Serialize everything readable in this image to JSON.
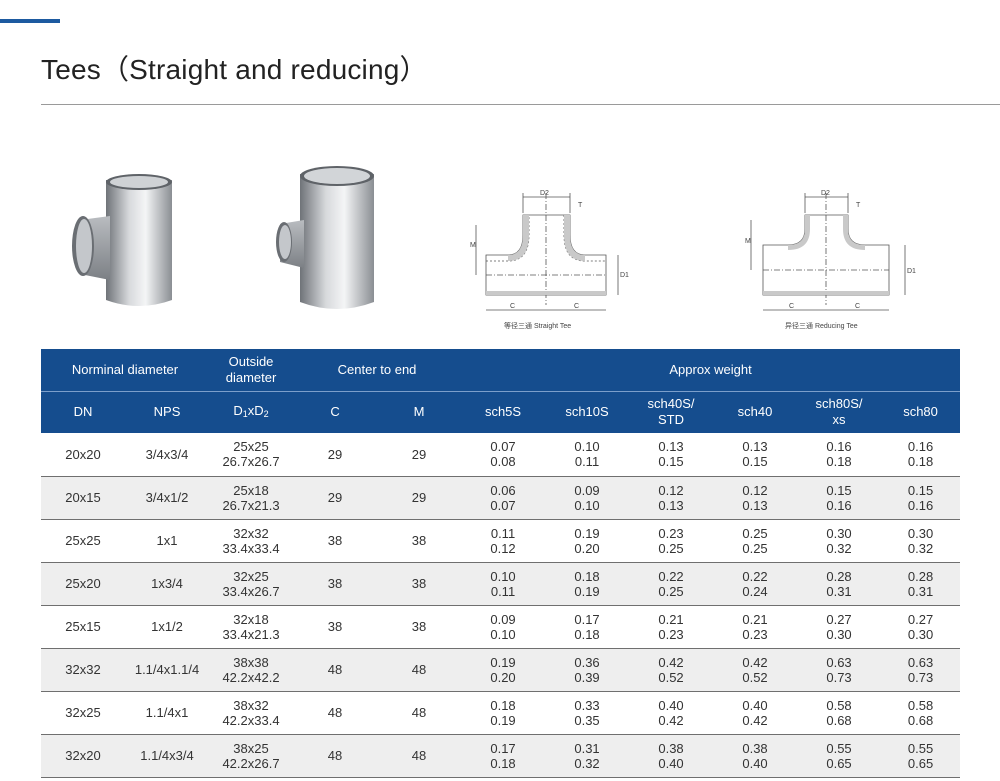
{
  "page": {
    "title": "Tees（Straight and reducing）"
  },
  "figures": {
    "photo_straight": "straight-tee-photo",
    "photo_reducing": "reducing-tee-photo",
    "straight_drawing": {
      "caption": "等径三通  Straight Tee",
      "label_d1": "D1",
      "label_d2": "D2",
      "label_t": "T",
      "label_m": "M",
      "label_c": "C"
    },
    "reducing_drawing": {
      "caption": "异径三通  Reducing Tee",
      "label_d1": "D1",
      "label_d2": "D2",
      "label_t": "T",
      "label_m": "M",
      "label_c": "C"
    }
  },
  "table": {
    "group_headers": {
      "nominal": "Norminal diameter",
      "outside_line1": "Outside",
      "outside_line2": "diameter",
      "center": "Center to end",
      "weight": "Approx weight"
    },
    "columns": {
      "dn": "DN",
      "nps": "NPS",
      "d_main": "D",
      "d_sub1": "1",
      "d_x": "xD",
      "d_sub2": "2",
      "c": "C",
      "m": "M",
      "sch5s": "sch5S",
      "sch10s": "sch10S",
      "sch40s_line1": "sch40S/",
      "sch40s_line2": "STD",
      "sch40": "sch40",
      "sch80s_line1": "sch80S/",
      "sch80s_line2": "xs",
      "sch80": "sch80"
    },
    "rows": [
      {
        "dn": "20x20",
        "nps": "3/4x3/4",
        "od": [
          "25x25",
          "26.7x26.7"
        ],
        "c": "29",
        "m": "29",
        "sch5s": [
          "0.07",
          "0.08"
        ],
        "sch10s": [
          "0.10",
          "0.11"
        ],
        "sch40s": [
          "0.13",
          "0.15"
        ],
        "sch40": [
          "0.13",
          "0.15"
        ],
        "sch80s": [
          "0.16",
          "0.18"
        ],
        "sch80": [
          "0.16",
          "0.18"
        ]
      },
      {
        "dn": "20x15",
        "nps": "3/4x1/2",
        "od": [
          "25x18",
          "26.7x21.3"
        ],
        "c": "29",
        "m": "29",
        "sch5s": [
          "0.06",
          "0.07"
        ],
        "sch10s": [
          "0.09",
          "0.10"
        ],
        "sch40s": [
          "0.12",
          "0.13"
        ],
        "sch40": [
          "0.12",
          "0.13"
        ],
        "sch80s": [
          "0.15",
          "0.16"
        ],
        "sch80": [
          "0.15",
          "0.16"
        ]
      },
      {
        "dn": "25x25",
        "nps": "1x1",
        "od": [
          "32x32",
          "33.4x33.4"
        ],
        "c": "38",
        "m": "38",
        "sch5s": [
          "0.11",
          "0.12"
        ],
        "sch10s": [
          "0.19",
          "0.20"
        ],
        "sch40s": [
          "0.23",
          "0.25"
        ],
        "sch40": [
          "0.25",
          "0.25"
        ],
        "sch80s": [
          "0.30",
          "0.32"
        ],
        "sch80": [
          "0.30",
          "0.32"
        ]
      },
      {
        "dn": "25x20",
        "nps": "1x3/4",
        "od": [
          "32x25",
          "33.4x26.7"
        ],
        "c": "38",
        "m": "38",
        "sch5s": [
          "0.10",
          "0.11"
        ],
        "sch10s": [
          "0.18",
          "0.19"
        ],
        "sch40s": [
          "0.22",
          "0.25"
        ],
        "sch40": [
          "0.22",
          "0.24"
        ],
        "sch80s": [
          "0.28",
          "0.31"
        ],
        "sch80": [
          "0.28",
          "0.31"
        ]
      },
      {
        "dn": "25x15",
        "nps": "1x1/2",
        "od": [
          "32x18",
          "33.4x21.3"
        ],
        "c": "38",
        "m": "38",
        "sch5s": [
          "0.09",
          "0.10"
        ],
        "sch10s": [
          "0.17",
          "0.18"
        ],
        "sch40s": [
          "0.21",
          "0.23"
        ],
        "sch40": [
          "0.21",
          "0.23"
        ],
        "sch80s": [
          "0.27",
          "0.30"
        ],
        "sch80": [
          "0.27",
          "0.30"
        ]
      },
      {
        "dn": "32x32",
        "nps": "1.1/4x1.1/4",
        "od": [
          "38x38",
          "42.2x42.2"
        ],
        "c": "48",
        "m": "48",
        "sch5s": [
          "0.19",
          "0.20"
        ],
        "sch10s": [
          "0.36",
          "0.39"
        ],
        "sch40s": [
          "0.42",
          "0.52"
        ],
        "sch40": [
          "0.42",
          "0.52"
        ],
        "sch80s": [
          "0.63",
          "0.73"
        ],
        "sch80": [
          "0.63",
          "0.73"
        ]
      },
      {
        "dn": "32x25",
        "nps": "1.1/4x1",
        "od": [
          "38x32",
          "42.2x33.4"
        ],
        "c": "48",
        "m": "48",
        "sch5s": [
          "0.18",
          "0.19"
        ],
        "sch10s": [
          "0.33",
          "0.35"
        ],
        "sch40s": [
          "0.40",
          "0.42"
        ],
        "sch40": [
          "0.40",
          "0.42"
        ],
        "sch80s": [
          "0.58",
          "0.68"
        ],
        "sch80": [
          "0.58",
          "0.68"
        ]
      },
      {
        "dn": "32x20",
        "nps": "1.1/4x3/4",
        "od": [
          "38x25",
          "42.2x26.7"
        ],
        "c": "48",
        "m": "48",
        "sch5s": [
          "0.17",
          "0.18"
        ],
        "sch10s": [
          "0.31",
          "0.32"
        ],
        "sch40s": [
          "0.38",
          "0.40"
        ],
        "sch40": [
          "0.38",
          "0.40"
        ],
        "sch80s": [
          "0.55",
          "0.65"
        ],
        "sch80": [
          "0.55",
          "0.65"
        ]
      }
    ]
  }
}
